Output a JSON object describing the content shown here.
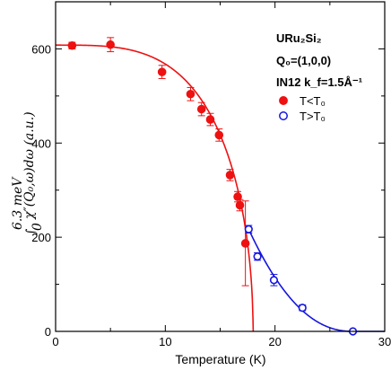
{
  "chart_data": {
    "type": "scatter",
    "xlabel": "Temperature (K)",
    "ylabel": "∫₀^{6.3 meV} χ″(Q₀,ω) dω (a.u.)",
    "ylabel_parts": {
      "integral": "∫",
      "upper": "6.3 meV",
      "lower": "0",
      "body": "χ″(Q₀,ω)dω (a.u.)"
    },
    "xlim": [
      0,
      30
    ],
    "ylim": [
      0,
      700
    ],
    "xticks": [
      0,
      10,
      20,
      30
    ],
    "yticks": [
      0,
      200,
      400,
      600
    ],
    "annotations": {
      "line1": "URu₂Si₂",
      "line2": "Q₀=(1,0,0)",
      "line3": "IN12 k_f=1.5Å⁻¹"
    },
    "legend_position": "top-right",
    "series": [
      {
        "name": "T<T₀",
        "marker": "filled-circle",
        "color": "#ee1111",
        "points": [
          {
            "x": 1.5,
            "y": 607,
            "err": 7
          },
          {
            "x": 5.0,
            "y": 609,
            "err": 15
          },
          {
            "x": 9.7,
            "y": 551,
            "err": 14
          },
          {
            "x": 12.3,
            "y": 504,
            "err": 14
          },
          {
            "x": 13.3,
            "y": 472,
            "err": 14
          },
          {
            "x": 14.1,
            "y": 450,
            "err": 13
          },
          {
            "x": 14.9,
            "y": 417,
            "err": 13
          },
          {
            "x": 15.9,
            "y": 332,
            "err": 12
          },
          {
            "x": 16.6,
            "y": 286,
            "err": 11
          },
          {
            "x": 16.8,
            "y": 268,
            "err": 12
          },
          {
            "x": 17.3,
            "y": 187,
            "err": 90
          }
        ]
      },
      {
        "name": "T>T₀",
        "marker": "open-circle",
        "color": "#1515e0",
        "points": [
          {
            "x": 17.6,
            "y": 217,
            "err": 8
          },
          {
            "x": 18.4,
            "y": 159,
            "err": 8
          },
          {
            "x": 19.9,
            "y": 109,
            "err": 12
          },
          {
            "x": 22.5,
            "y": 50,
            "err": 6
          },
          {
            "x": 27.1,
            "y": 0,
            "err": 3
          }
        ]
      }
    ],
    "fits": [
      {
        "color": "#ee1111",
        "form": "order-parameter",
        "y0": 608,
        "tc": 18.0,
        "end_x": 18.05
      },
      {
        "color": "#1515e0",
        "form": "decay",
        "x_start": 17.6,
        "x_end": 30
      }
    ]
  }
}
